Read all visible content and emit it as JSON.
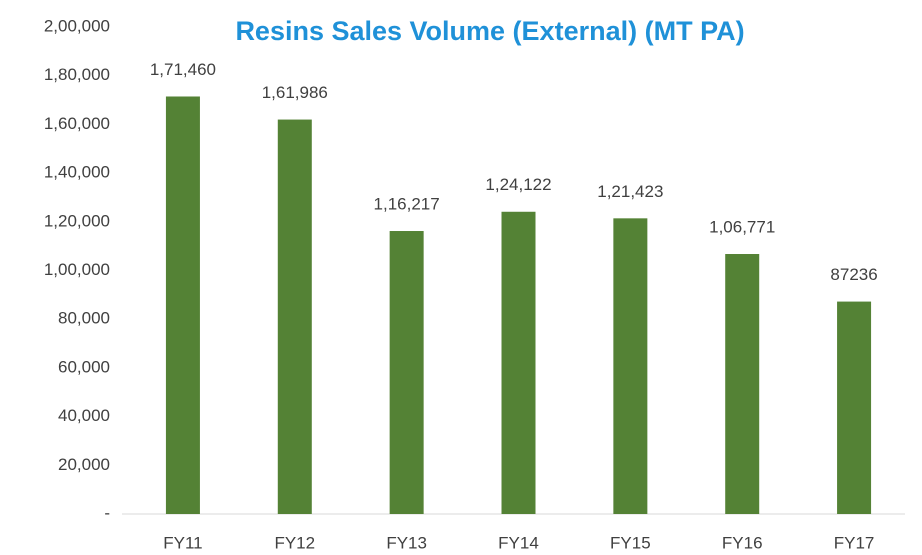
{
  "chart_data": {
    "type": "bar",
    "title": "Resins Sales Volume (External) (MT PA)",
    "categories": [
      "FY11",
      "FY12",
      "FY13",
      "FY14",
      "FY15",
      "FY16",
      "FY17"
    ],
    "values": [
      171460,
      161986,
      116217,
      124122,
      121423,
      106771,
      87236
    ],
    "value_labels": [
      "1,71,460",
      "1,61,986",
      "1,16,217",
      "1,24,122",
      "1,21,423",
      "1,06,771",
      "87236"
    ],
    "color": "#548235",
    "ylim": [
      0,
      200000
    ],
    "yticks": [
      {
        "value": 0,
        "label": "-"
      },
      {
        "value": 20000,
        "label": "20,000"
      },
      {
        "value": 40000,
        "label": "40,000"
      },
      {
        "value": 60000,
        "label": "60,000"
      },
      {
        "value": 80000,
        "label": "80,000"
      },
      {
        "value": 100000,
        "label": "1,00,000"
      },
      {
        "value": 120000,
        "label": "1,20,000"
      },
      {
        "value": 140000,
        "label": "1,40,000"
      },
      {
        "value": 160000,
        "label": "1,60,000"
      },
      {
        "value": 180000,
        "label": "1,80,000"
      },
      {
        "value": 200000,
        "label": "2,00,000"
      }
    ],
    "grid": false
  }
}
